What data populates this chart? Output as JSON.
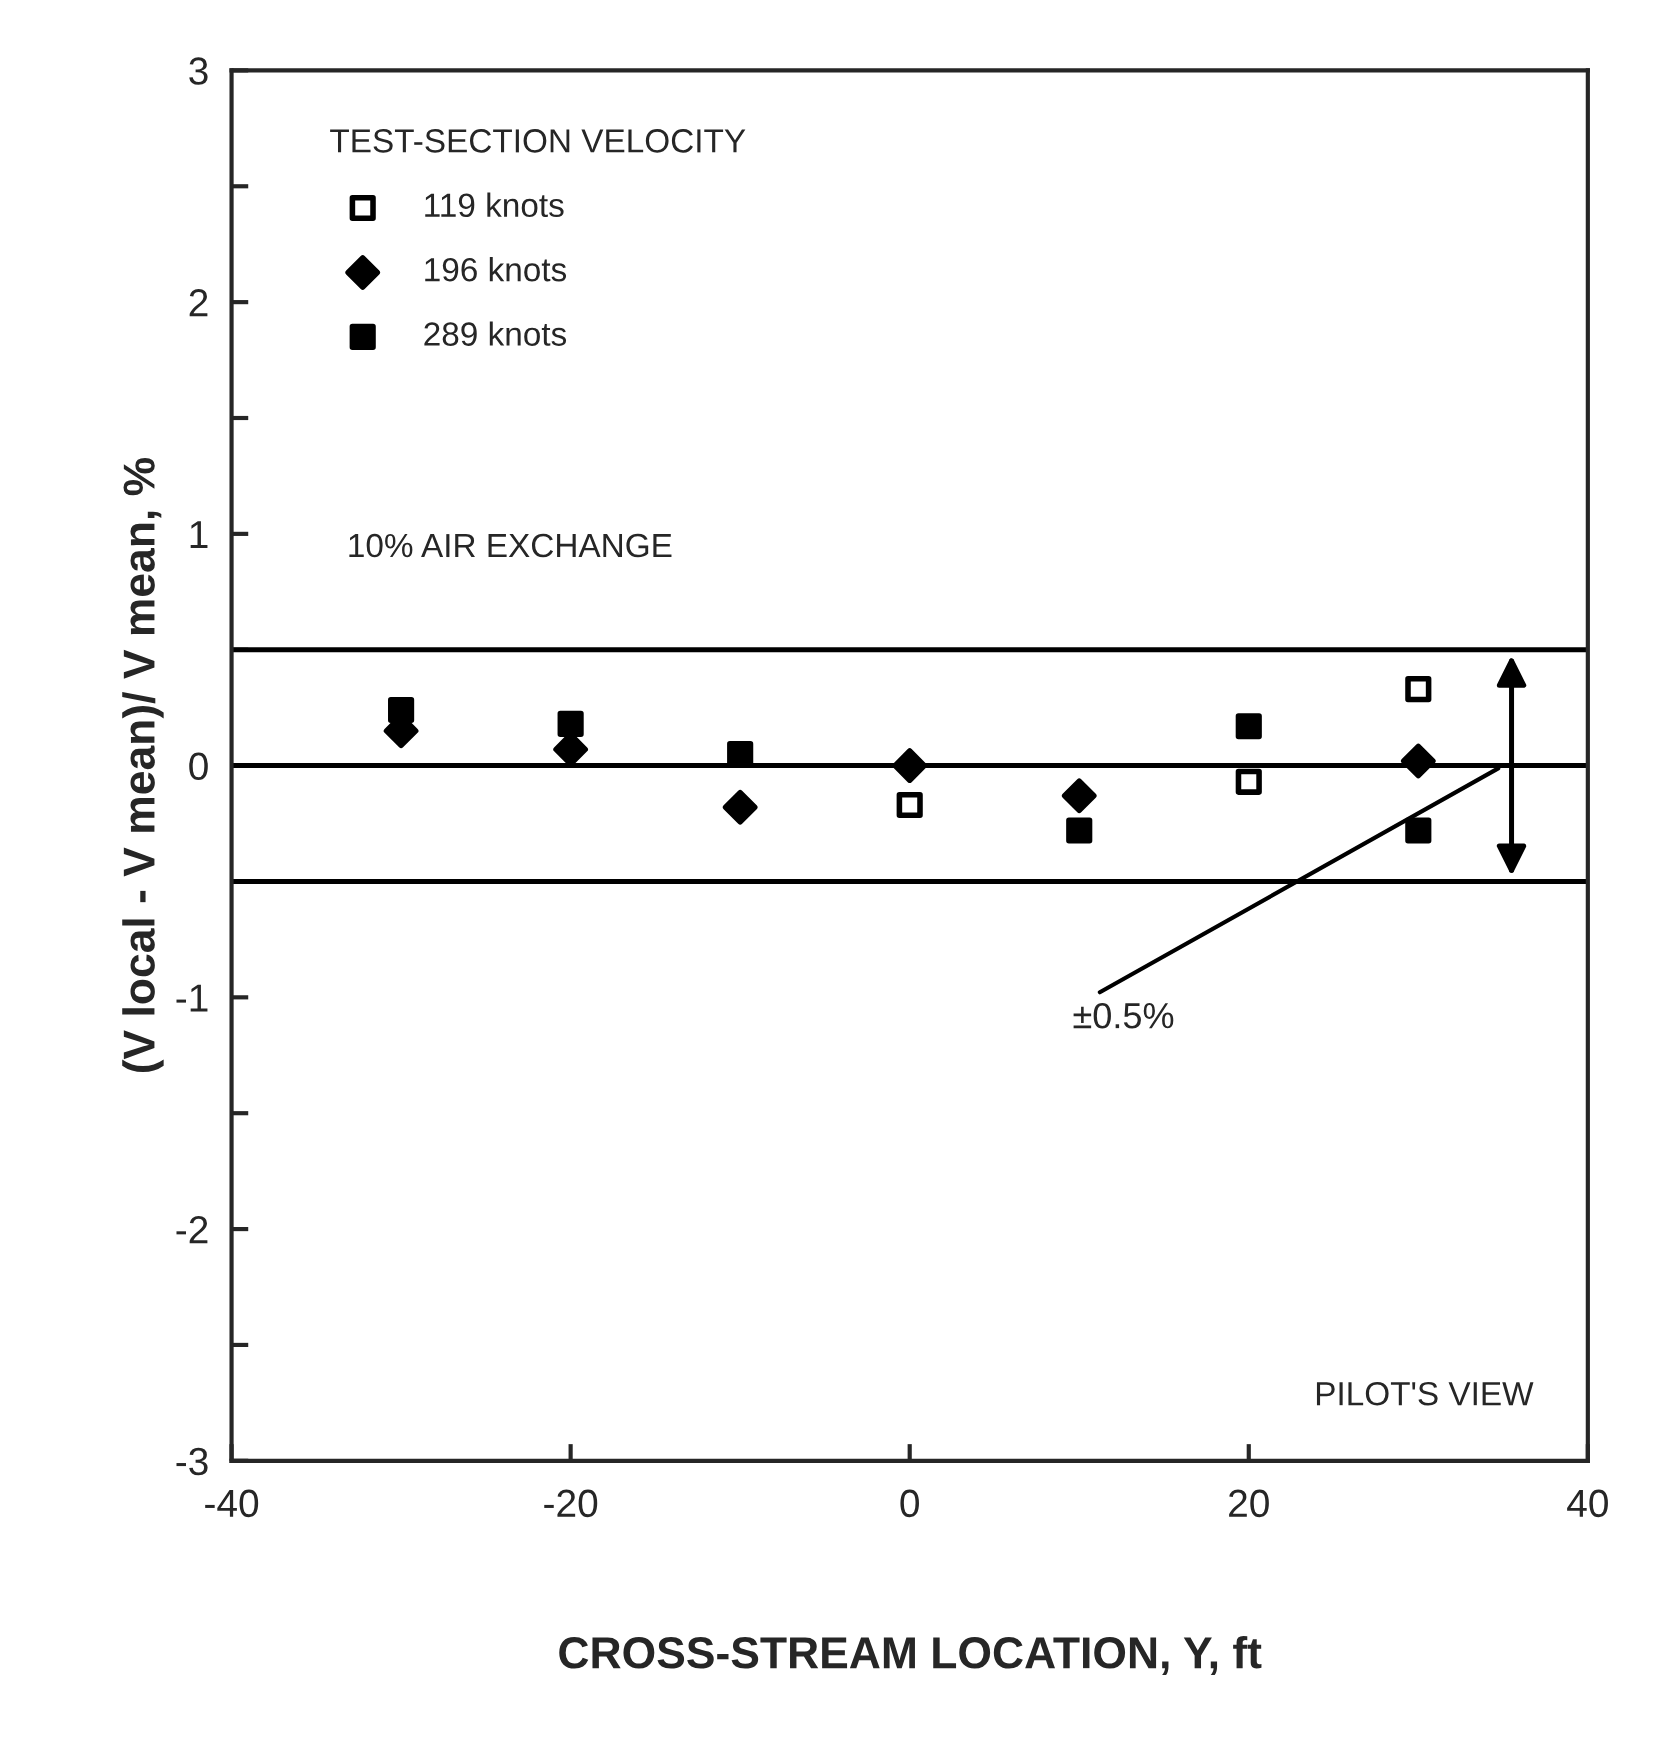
{
  "chart_data": {
    "type": "scatter",
    "xlabel": "CROSS-STREAM LOCATION, Y, ft",
    "ylabel": "(V local - V mean)/ V mean, %",
    "x": [
      -30,
      -20,
      -10,
      0,
      10,
      20,
      30
    ],
    "series": [
      {
        "name": "119 knots",
        "color": "#ffffff",
        "marker": "square",
        "values": [
          null,
          null,
          null,
          -0.17,
          null,
          -0.07,
          0.33
        ]
      },
      {
        "name": "196 knots",
        "color": "#000000",
        "marker": "diamond",
        "values": [
          0.15,
          0.07,
          -0.18,
          0.0,
          -0.13,
          null,
          0.02
        ]
      },
      {
        "name": "289 knots",
        "color": "#000000",
        "marker": "square",
        "values": [
          0.24,
          0.18,
          0.05,
          null,
          -0.28,
          0.17,
          -0.28
        ]
      }
    ],
    "legend_title": "TEST-SECTION VELOCITY",
    "legend": "top left",
    "grid": false,
    "xlim": [
      -40,
      40
    ],
    "xticks": [
      -40,
      -20,
      0,
      20,
      40
    ],
    "ylim": [
      -3,
      3
    ],
    "yticks": [
      -3,
      {
        "value": -2.5,
        "label": null
      },
      -2,
      {
        "value": -1.5,
        "label": null
      },
      -1,
      {
        "value": -0.5,
        "label": null
      },
      0,
      {
        "value": 0.5,
        "label": null
      },
      1,
      {
        "value": 1.5,
        "label": null
      },
      2,
      {
        "value": 2.5,
        "label": null
      },
      3
    ],
    "ref_lines": [
      {
        "axis": "y",
        "value": 0.5,
        "color": "#000000"
      },
      {
        "axis": "y",
        "value": 0,
        "color": "#000000"
      },
      {
        "axis": "y",
        "value": -0.5,
        "color": "#000000"
      }
    ],
    "annotations": [
      "10% AIR EXCHANGE",
      "PILOT'S VIEW",
      {
        "text": "±0.5%",
        "x": 35,
        "y": 0
      }
    ]
  }
}
